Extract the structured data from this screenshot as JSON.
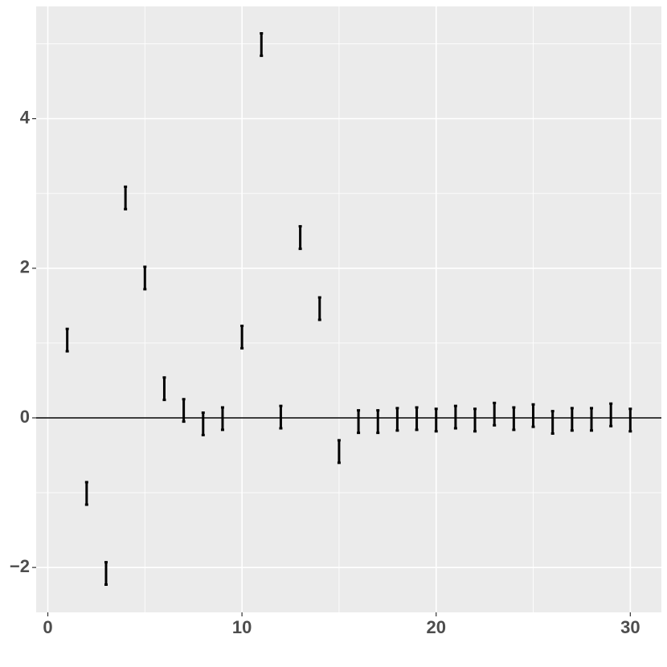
{
  "chart_data": {
    "type": "errorbar",
    "x": [
      1,
      2,
      3,
      4,
      5,
      6,
      7,
      8,
      9,
      10,
      11,
      12,
      13,
      14,
      15,
      16,
      17,
      18,
      19,
      20,
      21,
      22,
      23,
      24,
      25,
      26,
      27,
      28,
      29,
      30
    ],
    "values": [
      1.04,
      -1.01,
      -2.08,
      2.94,
      1.87,
      0.39,
      0.1,
      -0.08,
      -0.01,
      1.08,
      4.99,
      0.01,
      2.41,
      1.46,
      -0.45,
      -0.05,
      -0.05,
      -0.02,
      -0.01,
      -0.03,
      0.01,
      -0.03,
      0.05,
      -0.01,
      0.03,
      -0.06,
      -0.02,
      -0.02,
      0.04,
      -0.03
    ],
    "errors": [
      0.15,
      0.15,
      0.15,
      0.15,
      0.15,
      0.15,
      0.15,
      0.15,
      0.15,
      0.15,
      0.15,
      0.15,
      0.15,
      0.15,
      0.15,
      0.15,
      0.15,
      0.15,
      0.15,
      0.15,
      0.15,
      0.15,
      0.15,
      0.15,
      0.15,
      0.15,
      0.15,
      0.15,
      0.15,
      0.15
    ],
    "color": "#000000",
    "hline": 0,
    "xlim": [
      -0.6,
      31.6
    ],
    "xticks": [
      0,
      10,
      20,
      30
    ],
    "minor_xticks": [
      5,
      15,
      25
    ],
    "ylim": [
      -2.6,
      5.5
    ],
    "yticks": [
      {
        "value": -2,
        "label": "−2"
      },
      0,
      2,
      4
    ],
    "minor_yticks": [
      -1,
      1,
      3,
      5
    ],
    "grid": true
  }
}
